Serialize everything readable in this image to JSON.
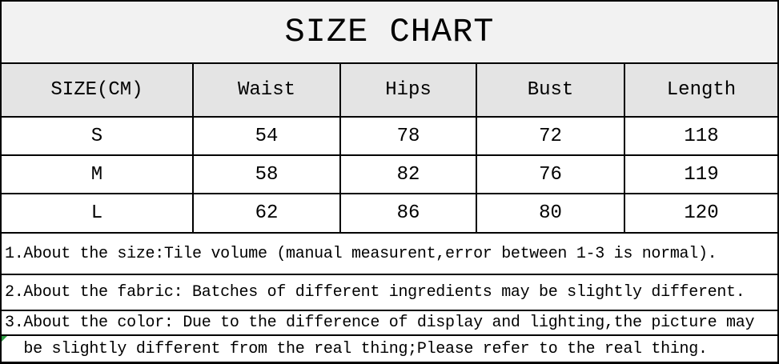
{
  "title": "SIZE CHART",
  "table": {
    "header": [
      "SIZE(CM)",
      "Waist",
      "Hips",
      "Bust",
      "Length"
    ],
    "rows": [
      [
        "S",
        "54",
        "78",
        "72",
        "118"
      ],
      [
        "M",
        "58",
        "82",
        "76",
        "119"
      ],
      [
        "L",
        "62",
        "86",
        "80",
        "120"
      ]
    ]
  },
  "notes": {
    "line1": "1.About the size:Tile volume (manual measurent,error between 1-3 is normal).",
    "line2": "2.About the fabric: Batches of different ingredients may be slightly different.",
    "line3a": "3.About the color: Due to the difference of display and lighting,the picture may",
    "line3b": "  be slightly different from the real thing;Please refer to the real thing."
  },
  "colors": {
    "title_row_bg": "#f2f2f2",
    "header_row_bg": "#e4e4e4",
    "body_bg": "#ffffff",
    "grid_border": "#000000",
    "error_marker_green": "#2e9e44"
  }
}
